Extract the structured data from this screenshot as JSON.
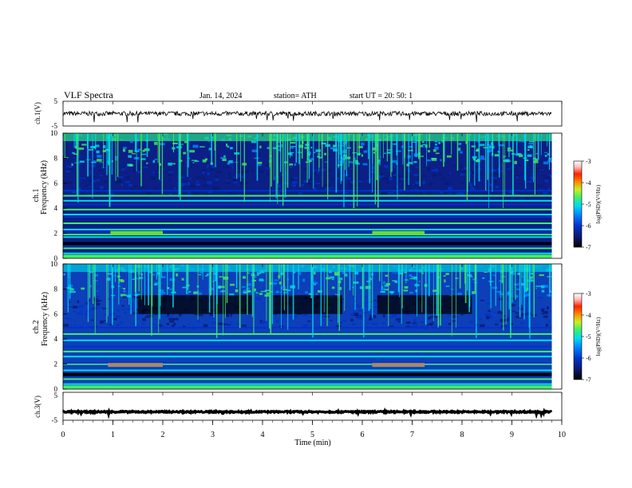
{
  "header": {
    "title": "VLF Spectra",
    "date": "Jan. 14, 2024",
    "station": "station= ATH",
    "start": "start UT =  20: 50: 1"
  },
  "chart_data": [
    {
      "type": "line",
      "panel": "ch1-waveform",
      "ylabel": "ch.1(V)",
      "ylim": [
        -5,
        5
      ],
      "yticks": [
        "5",
        "-5"
      ],
      "xlim": [
        0,
        9.8
      ],
      "series": [
        {
          "name": "",
          "color": "#000000",
          "baseline": 0,
          "amplitude": 0.9
        }
      ]
    },
    {
      "type": "heatmap",
      "panel": "ch1-spectrogram",
      "ylabel": "ch.1\nFrequency (kHz)",
      "ylim": [
        0,
        10
      ],
      "yticks": [
        "0",
        "2",
        "4",
        "6",
        "8",
        "10"
      ],
      "xlim": [
        0,
        9.8
      ],
      "colorbar": {
        "label": "log(PSD)(V²/Hz)",
        "range": [
          -7,
          -3
        ],
        "ticks": [
          "-3",
          "-4",
          "-5",
          "-6",
          "-7"
        ]
      },
      "bands": [
        0.4,
        0.8,
        1.0,
        1.7,
        1.9,
        2.1,
        2.3,
        2.8,
        3.3,
        3.5,
        3.9,
        4.3,
        4.6,
        5.0,
        5.4
      ],
      "hot_segments": [
        {
          "x": [
            0.95,
            2.0
          ],
          "f": 2.0
        },
        {
          "x": [
            6.2,
            7.25
          ],
          "f": 2.0
        }
      ]
    },
    {
      "type": "heatmap",
      "panel": "ch2-spectrogram",
      "ylabel": "ch.2\nFrequency (kHz)",
      "ylim": [
        0,
        10
      ],
      "yticks": [
        "0",
        "2",
        "4",
        "6",
        "8",
        "10"
      ],
      "xlim": [
        0,
        9.8
      ],
      "colorbar": {
        "label": "log(PSD)(V²/Hz)",
        "range": [
          -7,
          -3
        ],
        "ticks": [
          "-3",
          "-4",
          "-5",
          "-6",
          "-7"
        ]
      },
      "bands": [
        0.4,
        0.8,
        1.0,
        1.5,
        2.0,
        2.1,
        2.6,
        3.0,
        3.4,
        3.9,
        4.4,
        4.9
      ],
      "hot_segments": [
        {
          "x": [
            0.9,
            2.0
          ],
          "f": 1.9
        },
        {
          "x": [
            6.2,
            7.25
          ],
          "f": 1.9
        }
      ]
    },
    {
      "type": "line",
      "panel": "ch3-waveform",
      "ylabel": "ch.3(V)",
      "ylim": [
        -5,
        5
      ],
      "yticks": [
        "5",
        "-5"
      ],
      "xlim": [
        0,
        9.8
      ],
      "series": [
        {
          "name": "",
          "color": "#000000",
          "baseline": -2.0,
          "amplitude": 0.25
        }
      ]
    }
  ],
  "xaxis": {
    "label": "Time (min)",
    "range": [
      0,
      10
    ],
    "ticks": [
      "0",
      "1",
      "2",
      "3",
      "4",
      "5",
      "6",
      "7",
      "8",
      "9",
      "10"
    ]
  },
  "colors": {
    "colormap": [
      "#000000",
      "#0a1a6e",
      "#0033cc",
      "#0088ff",
      "#00ddee",
      "#44ee66",
      "#ccee22",
      "#ff8800",
      "#ff2200",
      "#ffdddd",
      "#ffffff"
    ]
  }
}
